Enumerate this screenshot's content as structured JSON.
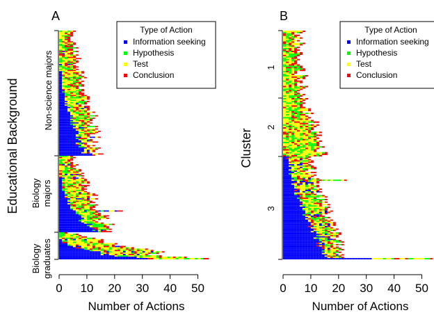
{
  "colors": {
    "information_seeking": "#0000FF",
    "hypothesis": "#00FF00",
    "test": "#FFFF00",
    "conclusion": "#FF0000"
  },
  "chart_data": [
    {
      "type": "bar",
      "orientation": "horizontal",
      "stacking": "sequence of actions (one colored cell per action)",
      "panel_label": "A",
      "xlabel": "Number of Actions",
      "ylabel": "Educational Background",
      "xlim": [
        0,
        55
      ],
      "xticks": [
        "0",
        "10",
        "20",
        "30",
        "40",
        "50"
      ],
      "legend": {
        "title": "Type of Action",
        "placement": "top-right",
        "entries": [
          "Information seeking",
          "Hypothesis",
          "Test",
          "Conclusion"
        ]
      },
      "groups": [
        {
          "label": "Non-science majors",
          "rows": 105
        },
        {
          "label": "Biology majors",
          "rows": 63
        },
        {
          "label": "Biology graduates",
          "rows": 20
        }
      ],
      "row_lengths_note": "Row totals estimated from image: most sequences 3-18 actions; longest ~54 actions (biology graduates); ~23 actions (biology majors); ~18 actions (non-science majors)",
      "max_row_lengths": [
        18,
        23,
        54
      ]
    },
    {
      "type": "bar",
      "orientation": "horizontal",
      "stacking": "sequence of actions (one colored cell per action)",
      "panel_label": "B",
      "xlabel": "Number of Actions",
      "ylabel": "Cluster",
      "xlim": [
        0,
        55
      ],
      "xticks": [
        "0",
        "10",
        "20",
        "30",
        "40",
        "50"
      ],
      "legend": {
        "title": "Type of Action",
        "placement": "top-right",
        "entries": [
          "Information seeking",
          "Hypothesis",
          "Test",
          "Conclusion"
        ]
      },
      "groups": [
        {
          "label": "1",
          "rows": 50
        },
        {
          "label": "2",
          "rows": 40
        },
        {
          "label": "3",
          "rows": 80
        }
      ],
      "max_row_lengths": [
        8,
        18,
        54
      ]
    }
  ]
}
